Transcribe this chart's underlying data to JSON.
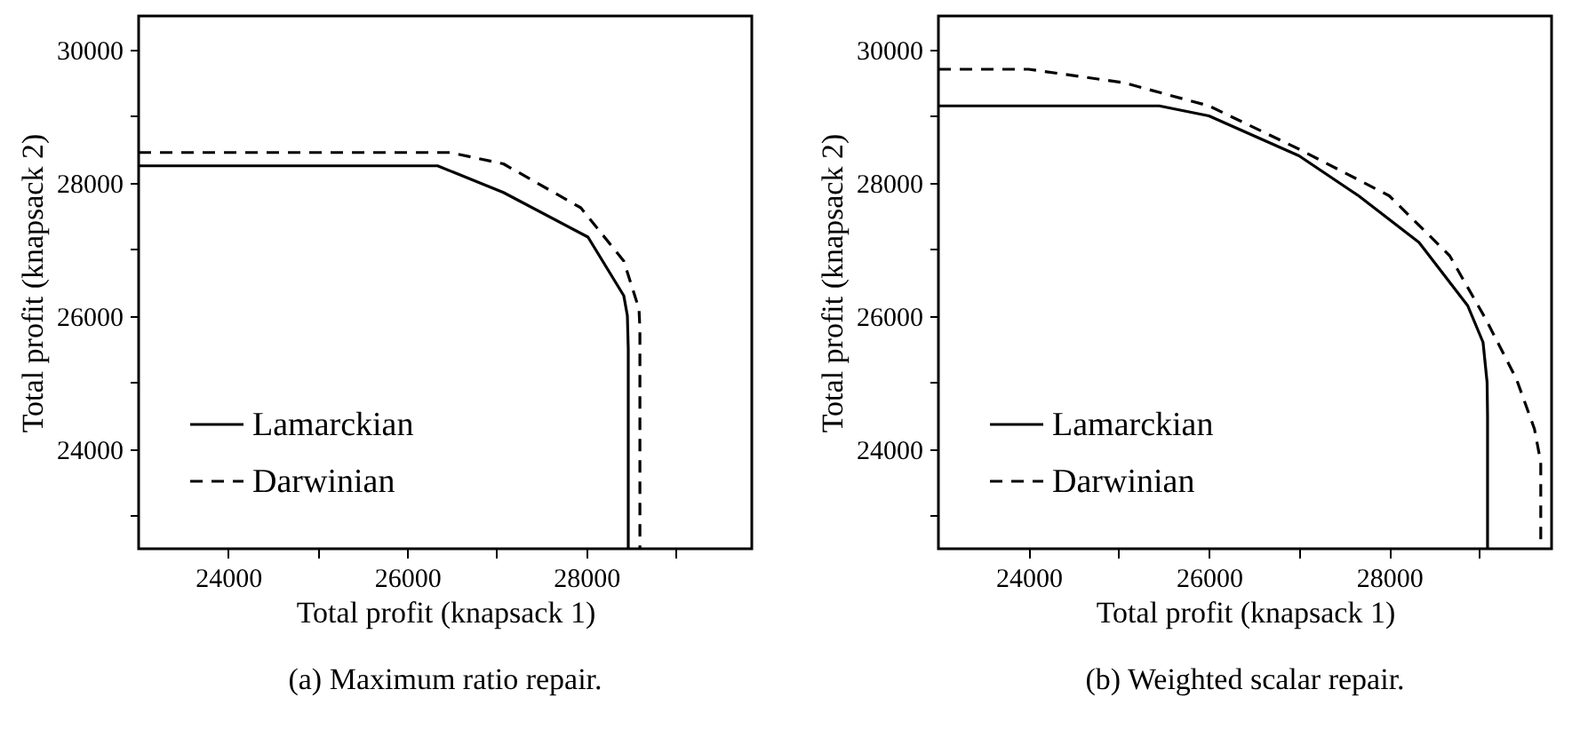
{
  "chart_data": [
    {
      "type": "line",
      "title": "(a) Maximum ratio repair.",
      "xlabel": "Total profit (knapsack 1)",
      "ylabel": "Total profit (knapsack 2)",
      "xlim": [
        23000,
        29850
      ],
      "ylim": [
        22500,
        30500
      ],
      "xticks": [
        24000,
        {
          "value": 25000,
          "label": null
        },
        26000,
        {
          "value": 27000,
          "label": null
        },
        28000,
        {
          "value": 29000,
          "label": null
        }
      ],
      "yticks": [
        {
          "value": 23000,
          "label": null
        },
        24000,
        {
          "value": 25000,
          "label": null
        },
        26000,
        {
          "value": 27000,
          "label": null
        },
        28000,
        {
          "value": 29000,
          "label": null
        },
        30000
      ],
      "legend": "bottom left",
      "series": [
        {
          "name": "Lamarckian",
          "color": "#000000",
          "line_style": "solid",
          "x": [
            23000,
            26340,
            27075,
            28020,
            28420,
            28460,
            28470,
            28470
          ],
          "values": [
            28250,
            28250,
            27850,
            27180,
            26300,
            26000,
            25500,
            22500
          ]
        },
        {
          "name": "Darwinian",
          "color": "#000000",
          "line_style": "dashed",
          "x": [
            23000,
            26480,
            27075,
            27940,
            28420,
            28590,
            28600,
            28600
          ],
          "values": [
            28450,
            28450,
            28280,
            27620,
            26820,
            26100,
            25800,
            22500
          ]
        }
      ]
    },
    {
      "type": "line",
      "title": "(b) Weighted scalar repair.",
      "xlabel": "Total profit (knapsack 1)",
      "ylabel": "Total profit (knapsack 2)",
      "xlim": [
        23000,
        29800
      ],
      "ylim": [
        22500,
        30500
      ],
      "xticks": [
        24000,
        {
          "value": 25000,
          "label": null
        },
        26000,
        {
          "value": 27000,
          "label": null
        },
        28000,
        {
          "value": 29000,
          "label": null
        }
      ],
      "yticks": [
        {
          "value": 23000,
          "label": null
        },
        24000,
        {
          "value": 25000,
          "label": null
        },
        26000,
        {
          "value": 27000,
          "label": null
        },
        28000,
        {
          "value": 29000,
          "label": null
        },
        30000
      ],
      "legend": "bottom left",
      "series": [
        {
          "name": "Lamarckian",
          "color": "#000000",
          "line_style": "solid",
          "x": [
            23000,
            25450,
            26000,
            27000,
            27660,
            28330,
            28870,
            29040,
            29085,
            29090,
            29090
          ],
          "values": [
            29150,
            29150,
            29000,
            28400,
            27800,
            27100,
            26150,
            25600,
            25000,
            24500,
            22500
          ]
        },
        {
          "name": "Darwinian",
          "color": "#000000",
          "line_style": "dashed",
          "x": [
            23000,
            24000,
            25050,
            26000,
            27000,
            28000,
            28670,
            29070,
            29410,
            29610,
            29680,
            29680
          ],
          "values": [
            29700,
            29700,
            29500,
            29150,
            28500,
            27800,
            26900,
            25950,
            25050,
            24300,
            23800,
            22500
          ]
        }
      ]
    }
  ]
}
